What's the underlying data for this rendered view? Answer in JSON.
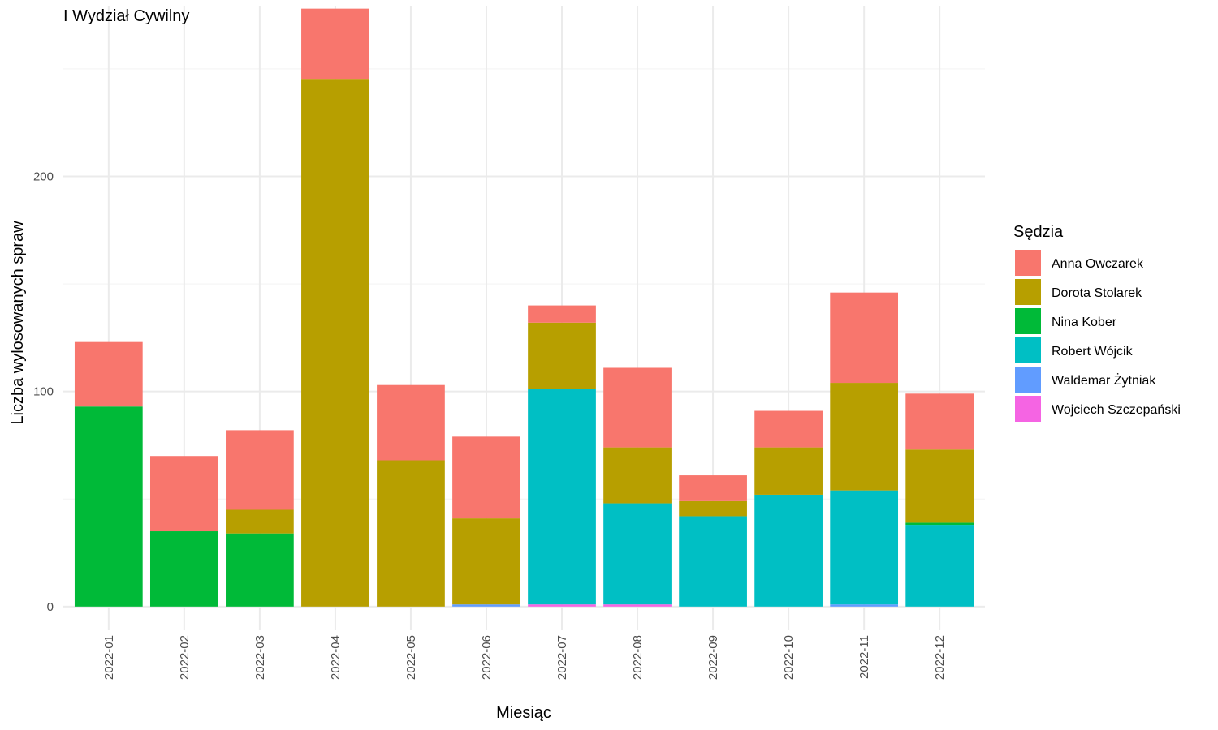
{
  "chart_data": {
    "type": "bar",
    "stacked": true,
    "title": "I Wydział Cywilny",
    "xlabel": "Miesiąc",
    "ylabel": "Liczba wylosowanych spraw",
    "ylim": [
      -11,
      279
    ],
    "yticks": [
      0,
      100,
      200
    ],
    "grid": true,
    "legend": {
      "title": "Sędzia",
      "position": "right"
    },
    "categories": [
      "2022-01",
      "2022-02",
      "2022-03",
      "2022-04",
      "2022-05",
      "2022-06",
      "2022-07",
      "2022-08",
      "2022-09",
      "2022-10",
      "2022-11",
      "2022-12"
    ],
    "series": [
      {
        "name": "Wojciech Szczepański",
        "color": "#F564E3",
        "values": [
          0,
          0,
          0,
          0,
          0,
          0,
          1,
          1,
          0,
          0,
          0,
          0
        ]
      },
      {
        "name": "Waldemar Żytniak",
        "color": "#619CFF",
        "values": [
          0,
          0,
          0,
          0,
          0,
          1,
          0,
          0,
          0,
          0,
          1,
          0
        ]
      },
      {
        "name": "Robert Wójcik",
        "color": "#00BFC4",
        "values": [
          0,
          0,
          0,
          0,
          0,
          0,
          100,
          47,
          42,
          52,
          53,
          38
        ]
      },
      {
        "name": "Nina Kober",
        "color": "#00BA38",
        "values": [
          93,
          35,
          34,
          0,
          0,
          0,
          0,
          0,
          0,
          0,
          0,
          1
        ]
      },
      {
        "name": "Dorota Stolarek",
        "color": "#B79F00",
        "values": [
          0,
          0,
          11,
          245,
          68,
          40,
          31,
          26,
          7,
          22,
          50,
          34
        ]
      },
      {
        "name": "Anna Owczarek",
        "color": "#F8766D",
        "values": [
          30,
          35,
          37,
          33,
          35,
          38,
          8,
          37,
          12,
          17,
          42,
          26
        ]
      }
    ],
    "legend_order": [
      "Anna Owczarek",
      "Dorota Stolarek",
      "Nina Kober",
      "Robert Wójcik",
      "Waldemar Żytniak",
      "Wojciech Szczepański"
    ]
  }
}
